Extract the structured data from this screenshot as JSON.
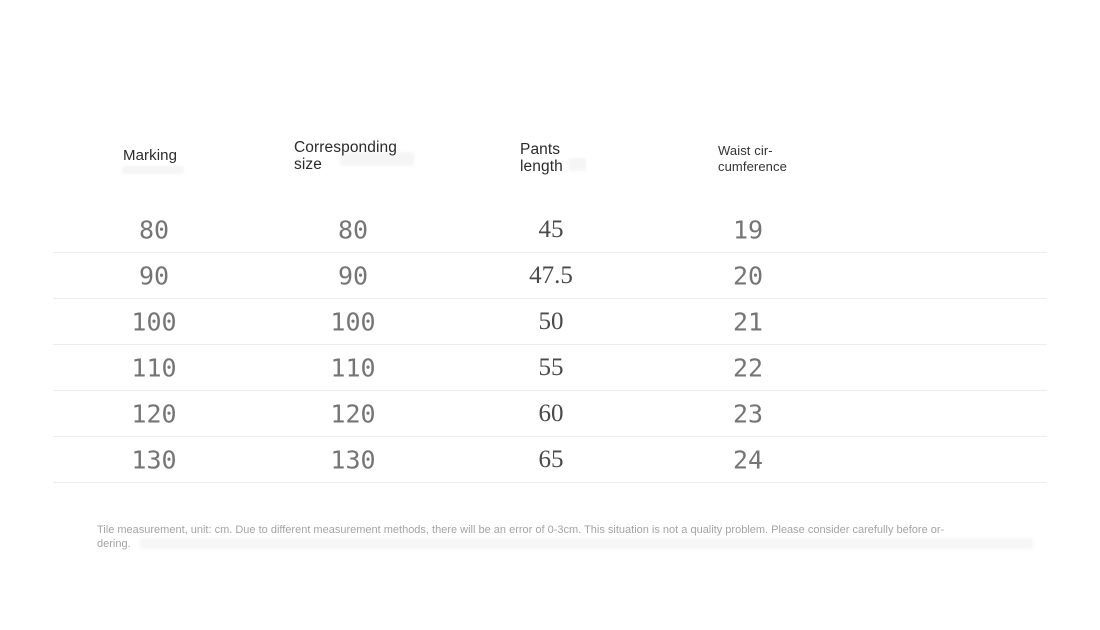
{
  "table": {
    "columns": [
      {
        "key": "marking",
        "label": "Marking"
      },
      {
        "key": "size",
        "label": "Corresponding size"
      },
      {
        "key": "length",
        "label": "Pants length"
      },
      {
        "key": "waist",
        "label": "Waist cir-cumference"
      }
    ],
    "rows": [
      {
        "marking": "80",
        "size": "80",
        "length": "45",
        "waist": "19"
      },
      {
        "marking": "90",
        "size": "90",
        "length": "47.5",
        "waist": "20"
      },
      {
        "marking": "100",
        "size": "100",
        "length": "50",
        "waist": "21"
      },
      {
        "marking": "110",
        "size": "110",
        "length": "55",
        "waist": "22"
      },
      {
        "marking": "120",
        "size": "120",
        "length": "60",
        "waist": "23"
      },
      {
        "marking": "130",
        "size": "130",
        "length": "65",
        "waist": "24"
      }
    ]
  },
  "note": {
    "lines": [
      "Tile measurement, unit: cm. Due to different measurement methods, there will be an error of 0-3cm. This situation is not a quality problem. Please consider carefully before or-",
      "dering."
    ]
  },
  "colors": {
    "page_bg": "#ffffff",
    "header_text": "#2a2a2a",
    "mono_digits": "#757575",
    "serif_digits": "#4a4a4a",
    "divider": "#ededed",
    "note_text": "#a3a3a3"
  },
  "chart_data": {
    "type": "table",
    "columns": [
      "Marking",
      "Corresponding size",
      "Pants length",
      "Waist circumference"
    ],
    "rows": [
      [
        80,
        80,
        45,
        19
      ],
      [
        90,
        90,
        47.5,
        20
      ],
      [
        100,
        100,
        50,
        21
      ],
      [
        110,
        110,
        55,
        22
      ],
      [
        120,
        120,
        60,
        23
      ],
      [
        130,
        130,
        65,
        24
      ]
    ]
  }
}
